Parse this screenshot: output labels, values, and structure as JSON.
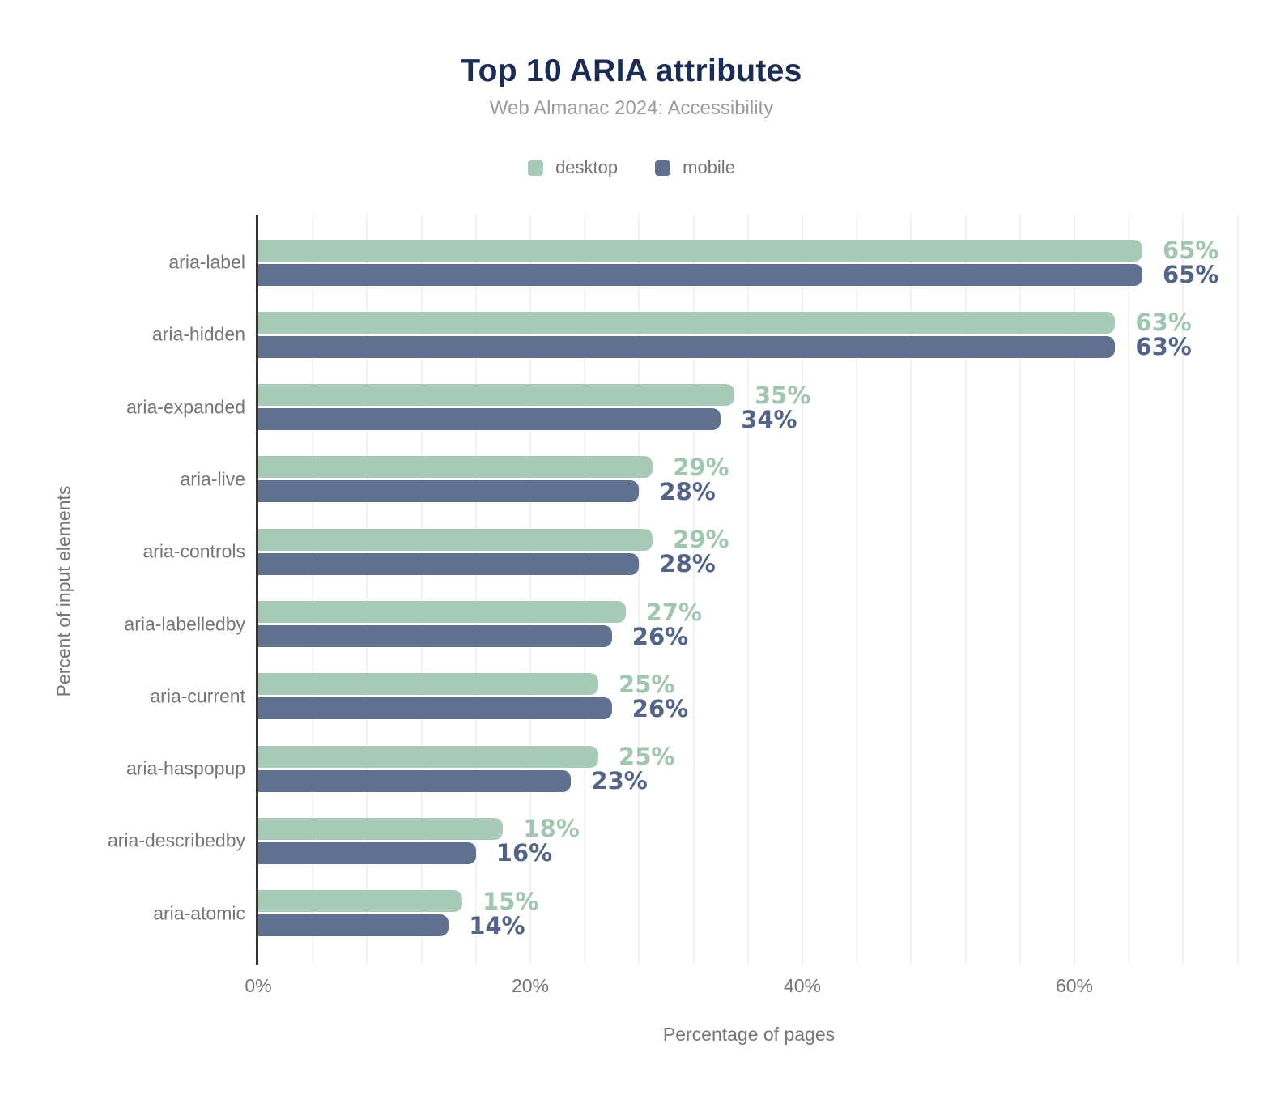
{
  "header": {
    "title": "Top 10 ARIA attributes",
    "subtitle": "Web Almanac 2024: Accessibility"
  },
  "chart_data": {
    "type": "bar",
    "orientation": "horizontal",
    "title": "Top 10 ARIA attributes",
    "subtitle": "Web Almanac 2024: Accessibility",
    "xlabel": "Percentage of pages",
    "ylabel": "Percent of input elements",
    "xlim": [
      0,
      72.5
    ],
    "grid_step_pct": 4,
    "legend_position": "top",
    "categories": [
      "aria-label",
      "aria-hidden",
      "aria-expanded",
      "aria-live",
      "aria-controls",
      "aria-labelledby",
      "aria-current",
      "aria-haspopup",
      "aria-describedby",
      "aria-atomic"
    ],
    "series": [
      {
        "name": "desktop",
        "color": "#a8cab8",
        "label_color": "#a0c6b0",
        "values": [
          65,
          63,
          35,
          29,
          29,
          27,
          25,
          25,
          18,
          15
        ],
        "display": [
          "65%",
          "63%",
          "35%",
          "29%",
          "29%",
          "27%",
          "25%",
          "25%",
          "18%",
          "15%"
        ]
      },
      {
        "name": "mobile",
        "color": "#5f718e",
        "label_color": "#546488",
        "values": [
          65,
          63,
          34,
          28,
          28,
          26,
          26,
          23,
          16,
          14
        ],
        "display": [
          "65%",
          "63%",
          "34%",
          "28%",
          "28%",
          "26%",
          "26%",
          "23%",
          "16%",
          "14%"
        ]
      }
    ],
    "x_ticks": [
      {
        "label": "0%",
        "value": 0
      },
      {
        "label": "20%",
        "value": 20
      },
      {
        "label": "40%",
        "value": 40
      },
      {
        "label": "60%",
        "value": 60
      }
    ],
    "value_suffix": "%"
  },
  "colors": {
    "title": "#1b2d55",
    "subtitle": "#9b9b9b",
    "axis_text": "#757575",
    "axis_line": "#333333",
    "gridline": "#f1f1f1",
    "background": "#ffffff"
  }
}
